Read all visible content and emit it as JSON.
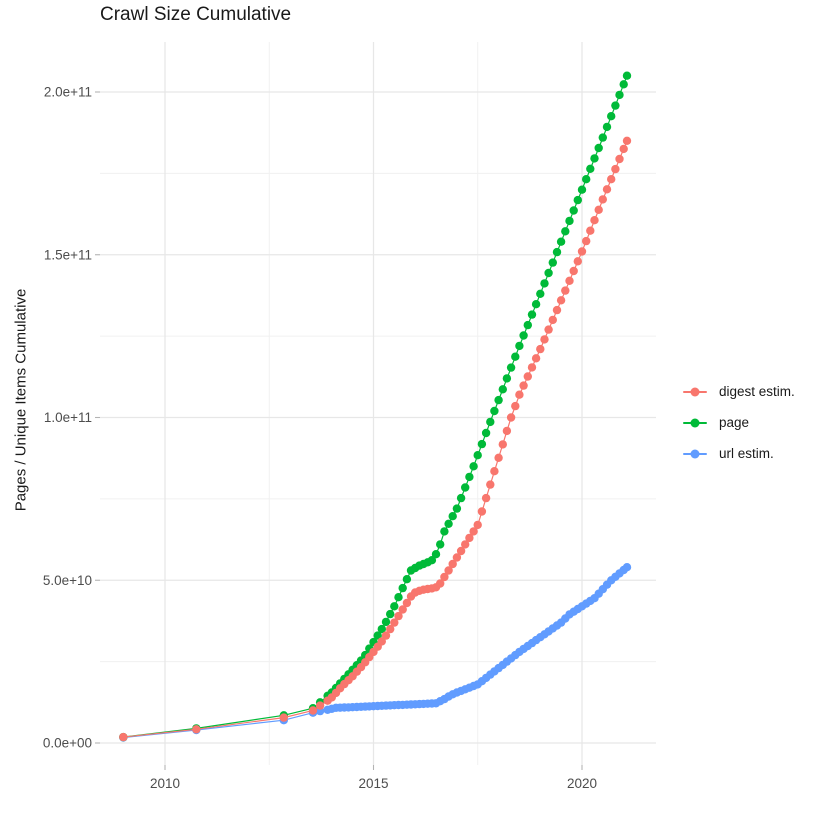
{
  "chart_data": {
    "type": "scatter",
    "title": "Crawl Size Cumulative",
    "xlabel": "",
    "ylabel": "Pages / Unique Items Cumulative",
    "grid": "on",
    "legend_position": "right",
    "x_ticks": [
      {
        "label": "2010",
        "value": 2010
      },
      {
        "label": "2015",
        "value": 2015
      },
      {
        "label": "2020",
        "value": 2020
      }
    ],
    "y_ticks": [
      {
        "label": "0.0e+00",
        "value": 0
      },
      {
        "label": "5.0e+10",
        "value": 50000000000.0
      },
      {
        "label": "1.0e+11",
        "value": 100000000000.0
      },
      {
        "label": "1.5e+11",
        "value": 150000000000.0
      },
      {
        "label": "2.0e+11",
        "value": 200000000000.0
      }
    ],
    "x_minor": [
      2012.5,
      2017.5
    ],
    "y_minor": [
      25000000000.0,
      75000000000.0,
      125000000000.0,
      175000000000.0
    ],
    "xlim": [
      2008.4,
      2021.8
    ],
    "ylim": [
      -6000000000.0,
      217000000000.0
    ],
    "point_sampling": {
      "dense_from": 2014.0,
      "step_years": 0.1
    },
    "series": [
      {
        "name": "digest estim.",
        "key": "digest-estim",
        "color": "#F8766D",
        "points": [
          [
            2009.0,
            1800000000.0
          ],
          [
            2010.75,
            4200000000.0
          ],
          [
            2012.85,
            7800000000.0
          ],
          [
            2013.55,
            10000000000.0
          ],
          [
            2013.72,
            11500000000.0
          ],
          [
            2013.9,
            13000000000.0
          ],
          [
            2014.0,
            14000000000.0
          ],
          [
            2014.25,
            17500000000.0
          ],
          [
            2014.5,
            20500000000.0
          ],
          [
            2014.75,
            24000000000.0
          ],
          [
            2015.0,
            28000000000.0
          ],
          [
            2015.25,
            32000000000.0
          ],
          [
            2015.5,
            37000000000.0
          ],
          [
            2015.75,
            42000000000.0
          ],
          [
            2015.95,
            46000000000.0
          ],
          [
            2016.15,
            47000000000.0
          ],
          [
            2016.4,
            47500000000.0
          ],
          [
            2016.55,
            48000000000.0
          ],
          [
            2016.7,
            51000000000.0
          ],
          [
            2016.85,
            54000000000.0
          ],
          [
            2017.0,
            57000000000.0
          ],
          [
            2017.5,
            67000000000.0
          ],
          [
            2018.3,
            100000000000.0
          ],
          [
            2018.5,
            107000000000.0
          ],
          [
            2019.0,
            121000000000.0
          ],
          [
            2019.5,
            136000000000.0
          ],
          [
            2020.0,
            151000000000.0
          ],
          [
            2020.5,
            167000000000.0
          ],
          [
            2021.08,
            185000000000.0
          ]
        ]
      },
      {
        "name": "page",
        "key": "page",
        "color": "#00BA38",
        "points": [
          [
            2009.0,
            1800000000.0
          ],
          [
            2010.75,
            4500000000.0
          ],
          [
            2012.85,
            8500000000.0
          ],
          [
            2013.55,
            10700000000.0
          ],
          [
            2013.72,
            12500000000.0
          ],
          [
            2013.9,
            14500000000.0
          ],
          [
            2014.0,
            15500000000.0
          ],
          [
            2014.25,
            19000000000.0
          ],
          [
            2014.5,
            22500000000.0
          ],
          [
            2014.75,
            26000000000.0
          ],
          [
            2015.0,
            31000000000.0
          ],
          [
            2015.25,
            36000000000.0
          ],
          [
            2015.5,
            42000000000.0
          ],
          [
            2015.75,
            49000000000.0
          ],
          [
            2015.9,
            53000000000.0
          ],
          [
            2016.1,
            54500000000.0
          ],
          [
            2016.3,
            55500000000.0
          ],
          [
            2016.45,
            56500000000.0
          ],
          [
            2016.6,
            61000000000.0
          ],
          [
            2016.7,
            65000000000.0
          ],
          [
            2017.0,
            72000000000.0
          ],
          [
            2017.4,
            85000000000.0
          ],
          [
            2017.84,
            100000000000.0
          ],
          [
            2018.5,
            122000000000.0
          ],
          [
            2019.0,
            138000000000.0
          ],
          [
            2019.5,
            154000000000.0
          ],
          [
            2020.0,
            170000000000.0
          ],
          [
            2020.5,
            186000000000.0
          ],
          [
            2021.08,
            205000000000.0
          ]
        ]
      },
      {
        "name": "url estim.",
        "key": "url-estim",
        "color": "#619CFF",
        "points": [
          [
            2009.0,
            1700000000.0
          ],
          [
            2010.75,
            4000000000.0
          ],
          [
            2012.85,
            7000000000.0
          ],
          [
            2013.55,
            9300000000.0
          ],
          [
            2013.72,
            9800000000.0
          ],
          [
            2013.9,
            10200000000.0
          ],
          [
            2014.1,
            10800000000.0
          ],
          [
            2014.5,
            11000000000.0
          ],
          [
            2015.0,
            11300000000.0
          ],
          [
            2015.5,
            11600000000.0
          ],
          [
            2016.0,
            11900000000.0
          ],
          [
            2016.5,
            12200000000.0
          ],
          [
            2016.7,
            13500000000.0
          ],
          [
            2016.85,
            14700000000.0
          ],
          [
            2017.0,
            15500000000.0
          ],
          [
            2017.5,
            18000000000.0
          ],
          [
            2018.0,
            23000000000.0
          ],
          [
            2018.2,
            25000000000.0
          ],
          [
            2018.5,
            28000000000.0
          ],
          [
            2019.0,
            32500000000.0
          ],
          [
            2019.5,
            37000000000.0
          ],
          [
            2019.7,
            39500000000.0
          ],
          [
            2020.0,
            42000000000.0
          ],
          [
            2020.3,
            44500000000.0
          ],
          [
            2020.7,
            50000000000.0
          ],
          [
            2021.08,
            54000000000.0
          ]
        ]
      }
    ]
  }
}
